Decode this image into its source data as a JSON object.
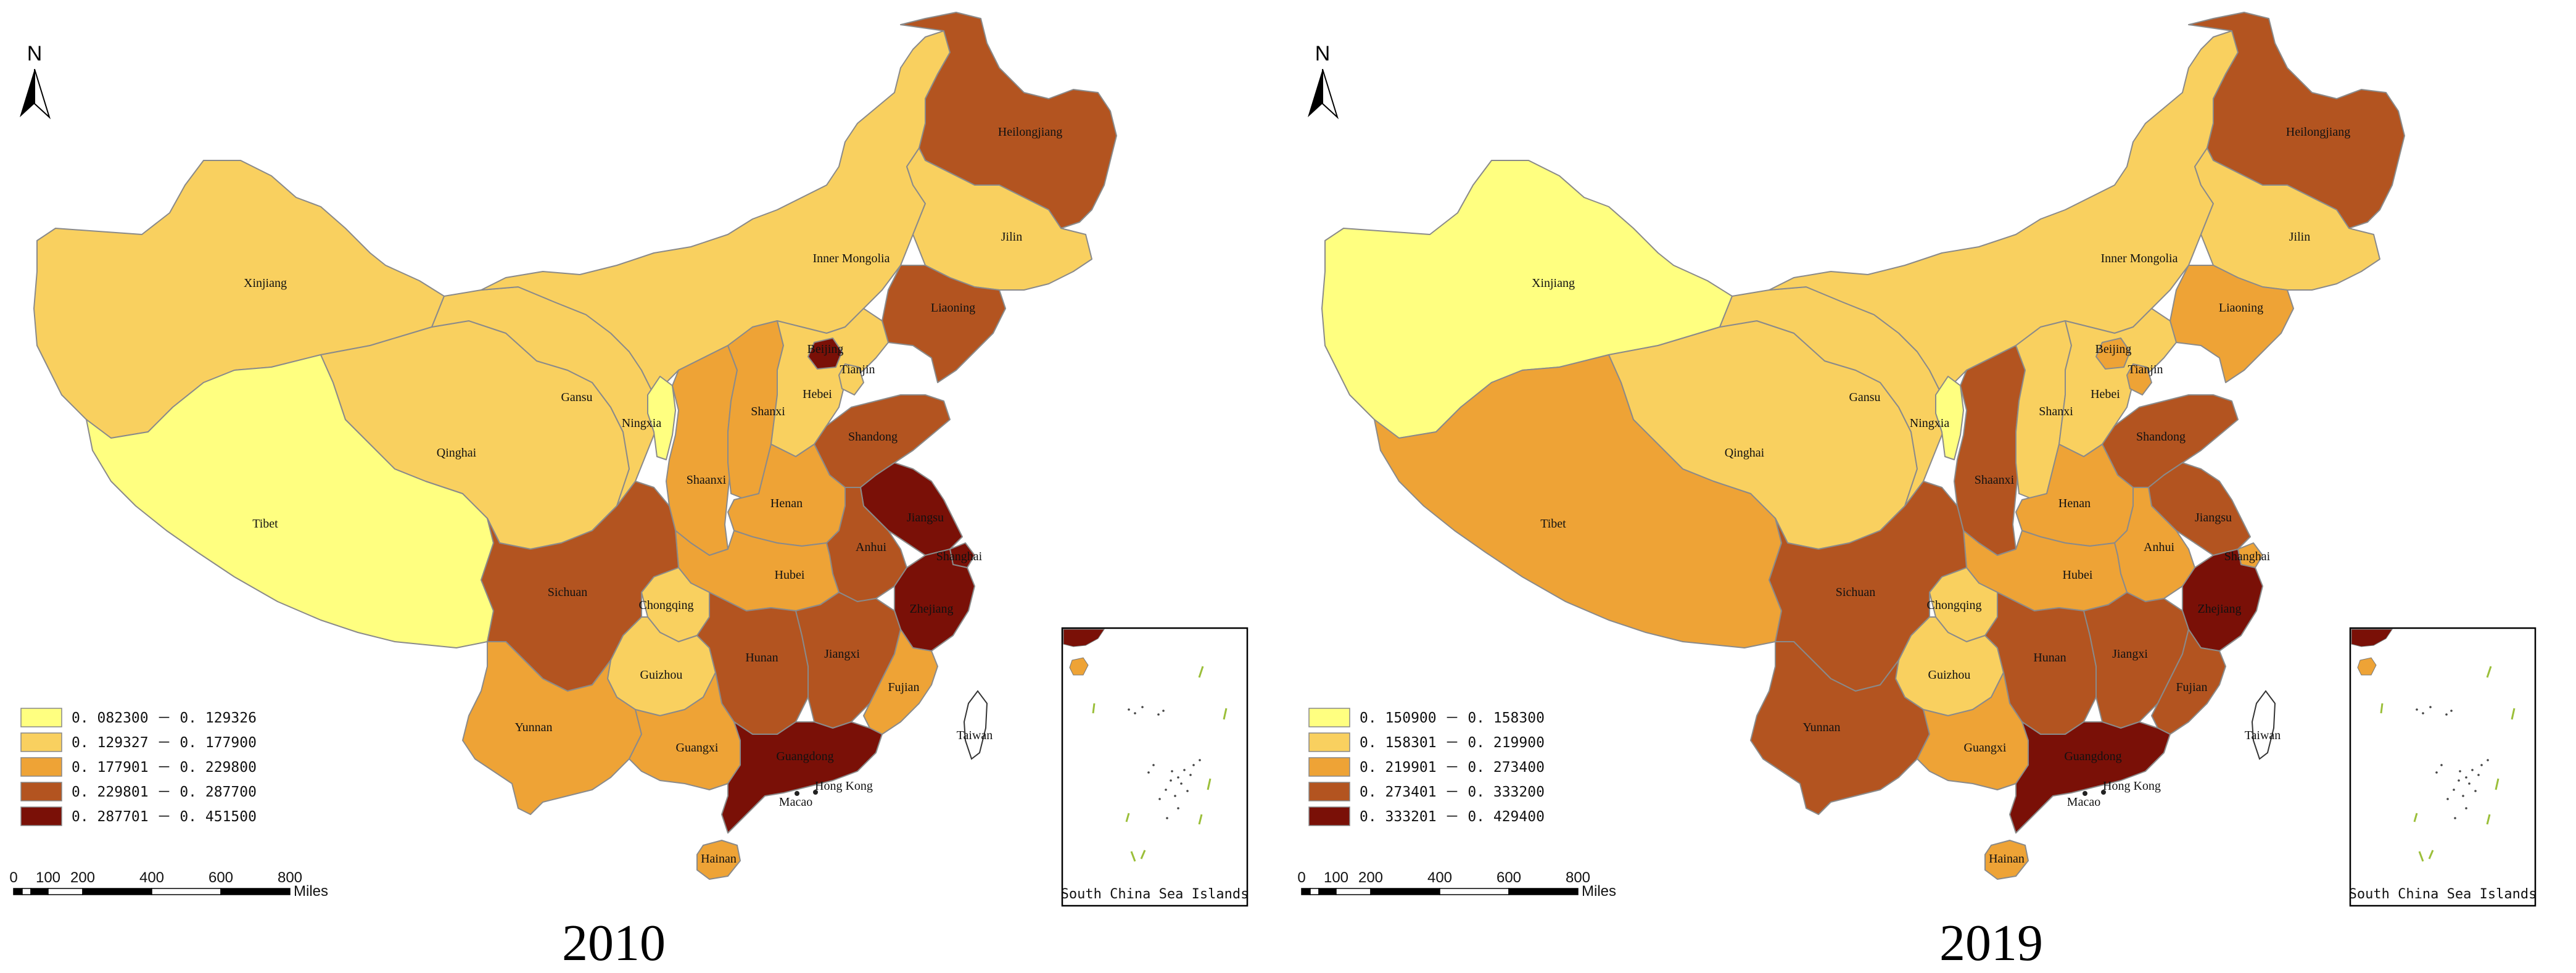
{
  "maps": [
    {
      "year": "2010",
      "legend": [
        {
          "range": "0. 082300 － 0. 129326",
          "color": "#ffff80"
        },
        {
          "range": "0. 129327 － 0. 177900",
          "color": "#f9d05f"
        },
        {
          "range": "0. 177901 － 0. 229800",
          "color": "#eea336"
        },
        {
          "range": "0. 229801 － 0. 287700",
          "color": "#b35420"
        },
        {
          "range": "0. 287701 － 0. 451500",
          "color": "#7a1007"
        }
      ],
      "provinces": {
        "xinjiang": {
          "label": "Xinjiang",
          "class": 2
        },
        "tibet": {
          "label": "Tibet",
          "class": 1
        },
        "qinghai": {
          "label": "Qinghai",
          "class": 2
        },
        "gansu": {
          "label": "Gansu",
          "class": 2
        },
        "inner_mongolia": {
          "label": "Inner Mongolia",
          "class": 2
        },
        "heilongjiang": {
          "label": "Heilongjiang",
          "class": 4
        },
        "jilin": {
          "label": "Jilin",
          "class": 2
        },
        "liaoning": {
          "label": "Liaoning",
          "class": 4
        },
        "ningxia": {
          "label": "Ningxia",
          "class": 1
        },
        "shaanxi": {
          "label": "Shaanxi",
          "class": 3
        },
        "shanxi": {
          "label": "Shanxi",
          "class": 3
        },
        "hebei": {
          "label": "Hebei",
          "class": 2
        },
        "beijing": {
          "label": "Beijing",
          "class": 5
        },
        "tianjin": {
          "label": "Tianjin",
          "class": 2
        },
        "shandong": {
          "label": "Shandong",
          "class": 4
        },
        "henan": {
          "label": "Henan",
          "class": 3
        },
        "jiangsu": {
          "label": "Jiangsu",
          "class": 5
        },
        "anhui": {
          "label": "Anhui",
          "class": 4
        },
        "shanghai": {
          "label": "Shanghai",
          "class": 5
        },
        "zhejiang": {
          "label": "Zhejiang",
          "class": 5
        },
        "hubei": {
          "label": "Hubei",
          "class": 3
        },
        "sichuan": {
          "label": "Sichuan",
          "class": 4
        },
        "chongqing": {
          "label": "Chongqing",
          "class": 2
        },
        "guizhou": {
          "label": "Guizhou",
          "class": 2
        },
        "hunan": {
          "label": "Hunan",
          "class": 4
        },
        "jiangxi": {
          "label": "Jiangxi",
          "class": 4
        },
        "fujian": {
          "label": "Fujian",
          "class": 3
        },
        "yunnan": {
          "label": "Yunnan",
          "class": 3
        },
        "guangxi": {
          "label": "Guangxi",
          "class": 3
        },
        "guangdong": {
          "label": "Guangdong",
          "class": 5
        },
        "hainan": {
          "label": "Hainan",
          "class": 3
        },
        "taiwan": {
          "label": "Taiwan"
        },
        "hong_kong": {
          "label": "Hong Kong"
        },
        "macao": {
          "label": "Macao"
        }
      }
    },
    {
      "year": "2019",
      "legend": [
        {
          "range": "0. 150900 － 0. 158300",
          "color": "#ffff80"
        },
        {
          "range": "0. 158301 － 0. 219900",
          "color": "#f9d05f"
        },
        {
          "range": "0. 219901 － 0. 273400",
          "color": "#eea336"
        },
        {
          "range": "0. 273401 － 0. 333200",
          "color": "#b35420"
        },
        {
          "range": "0. 333201 － 0. 429400",
          "color": "#7a1007"
        }
      ],
      "provinces": {
        "xinjiang": {
          "label": "Xinjiang",
          "class": 1
        },
        "tibet": {
          "label": "Tibet",
          "class": 3
        },
        "qinghai": {
          "label": "Qinghai",
          "class": 2
        },
        "gansu": {
          "label": "Gansu",
          "class": 2
        },
        "inner_mongolia": {
          "label": "Inner Mongolia",
          "class": 2
        },
        "heilongjiang": {
          "label": "Heilongjiang",
          "class": 4
        },
        "jilin": {
          "label": "Jilin",
          "class": 2
        },
        "liaoning": {
          "label": "Liaoning",
          "class": 3
        },
        "ningxia": {
          "label": "Ningxia",
          "class": 1
        },
        "shaanxi": {
          "label": "Shaanxi",
          "class": 4
        },
        "shanxi": {
          "label": "Shanxi",
          "class": 2
        },
        "hebei": {
          "label": "Hebei",
          "class": 2
        },
        "beijing": {
          "label": "Beijing",
          "class": 3
        },
        "tianjin": {
          "label": "Tianjin",
          "class": 3
        },
        "shandong": {
          "label": "Shandong",
          "class": 4
        },
        "henan": {
          "label": "Henan",
          "class": 3
        },
        "jiangsu": {
          "label": "Jiangsu",
          "class": 4
        },
        "anhui": {
          "label": "Anhui",
          "class": 3
        },
        "shanghai": {
          "label": "Shanghai",
          "class": 3
        },
        "zhejiang": {
          "label": "Zhejiang",
          "class": 5
        },
        "hubei": {
          "label": "Hubei",
          "class": 3
        },
        "sichuan": {
          "label": "Sichuan",
          "class": 4
        },
        "chongqing": {
          "label": "Chongqing",
          "class": 2
        },
        "guizhou": {
          "label": "Guizhou",
          "class": 2
        },
        "hunan": {
          "label": "Hunan",
          "class": 4
        },
        "jiangxi": {
          "label": "Jiangxi",
          "class": 4
        },
        "fujian": {
          "label": "Fujian",
          "class": 4
        },
        "yunnan": {
          "label": "Yunnan",
          "class": 4
        },
        "guangxi": {
          "label": "Guangxi",
          "class": 3
        },
        "guangdong": {
          "label": "Guangdong",
          "class": 5
        },
        "hainan": {
          "label": "Hainan",
          "class": 3
        },
        "taiwan": {
          "label": "Taiwan"
        },
        "hong_kong": {
          "label": "Hong Kong"
        },
        "macao": {
          "label": "Macao"
        }
      }
    }
  ],
  "north_arrow": {
    "letter": "N",
    "icon": "north-arrow-icon"
  },
  "scale_bar": {
    "ticks": [
      "0",
      "100",
      "200",
      "400",
      "600",
      "800"
    ],
    "unit": "Miles"
  },
  "inset": {
    "caption": "South China Sea Islands"
  },
  "colors": {
    "outline": "#8a8a8a",
    "taiwan_fill": "#ffffff"
  }
}
